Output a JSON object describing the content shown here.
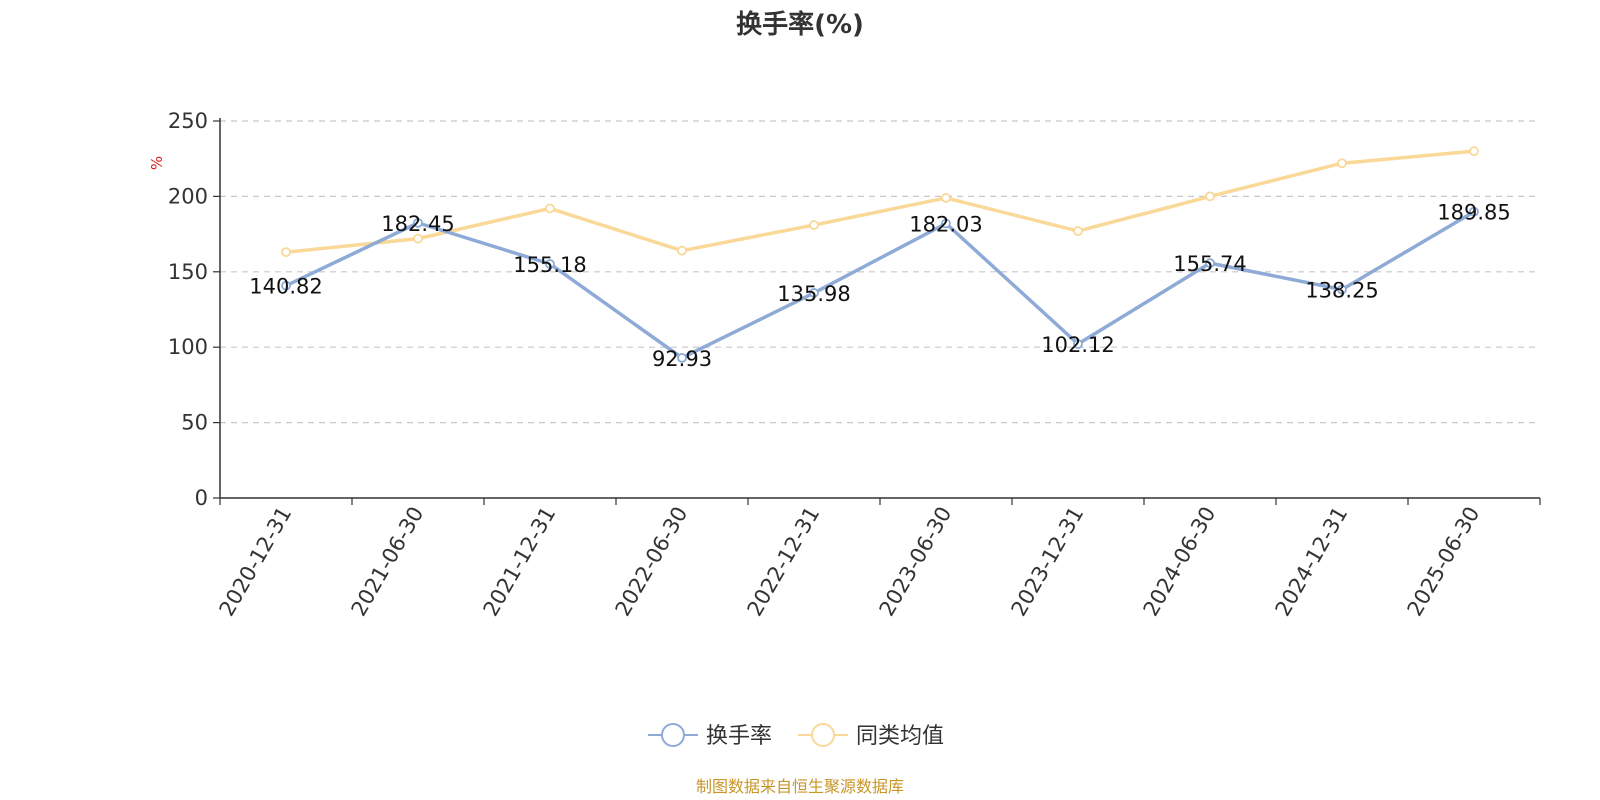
{
  "chart_data": {
    "type": "line",
    "title": "换手率(%)",
    "ylabel": "%",
    "ylim": [
      0,
      250
    ],
    "yticks": [
      0,
      50,
      100,
      150,
      200,
      250
    ],
    "grid": true,
    "legend_position": "bottom",
    "categories": [
      "2020-12-31",
      "2021-06-30",
      "2021-12-31",
      "2022-06-30",
      "2022-12-31",
      "2023-06-30",
      "2023-12-31",
      "2024-06-30",
      "2024-12-31",
      "2025-06-30"
    ],
    "series": [
      {
        "name": "换手率",
        "color": "#8eaad6",
        "values": [
          140.82,
          182.45,
          155.18,
          92.93,
          135.98,
          182.03,
          102.12,
          155.74,
          138.25,
          189.85
        ],
        "labels": [
          "140.82",
          "182.45",
          "155.18",
          "92.93",
          "135.98",
          "182.03",
          "102.12",
          "155.74",
          "138.25",
          "189.85"
        ]
      },
      {
        "name": "同类均值",
        "color": "#f9d898",
        "values": [
          163,
          172,
          192,
          164,
          181,
          199,
          177,
          200,
          222,
          230
        ]
      }
    ],
    "source": "制图数据来自恒生聚源数据库"
  }
}
